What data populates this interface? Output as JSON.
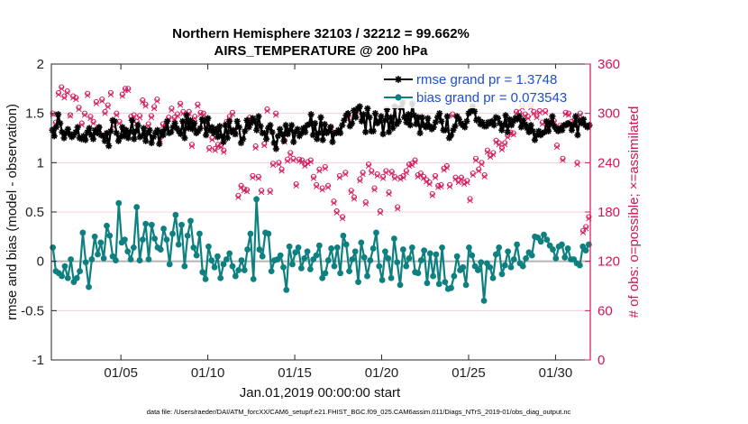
{
  "chart_data": {
    "type": "line",
    "title": "Northern Hemisphere 32103 / 32212 = 99.662%",
    "subtitle": "AIRS_TEMPERATURE @ 200 hPa",
    "xlabel": "Jan.01,2019 00:00:00 start",
    "ylabel": "rmse and bias (model - observation)",
    "ylabel_right": "# of obs: o=possible; ×=assimilated",
    "footnote": "data file: /Users/raeder/DAI/ATM_forcXX/CAM6_setup/f.e21.FHIST_BGC.f09_025.CAM6assim.011/Diags_NTrS_2019-01/obs_diag_output.nc",
    "x_range": [
      1,
      32
    ],
    "ylim": [
      -1,
      2
    ],
    "ylim_right": [
      0,
      360
    ],
    "x_ticks": [
      5,
      10,
      15,
      20,
      25,
      30
    ],
    "x_tick_labels": [
      "01/05",
      "01/10",
      "01/15",
      "01/20",
      "01/25",
      "01/30"
    ],
    "y_ticks": [
      -1,
      -0.5,
      0,
      0.5,
      1,
      1.5,
      2
    ],
    "y_tick_labels": [
      "-1",
      "-0.5",
      "0",
      "0.5",
      "1",
      "1.5",
      "2"
    ],
    "y_right_ticks": [
      0,
      60,
      120,
      180,
      240,
      300,
      360
    ],
    "y_right_tick_labels": [
      "0",
      "60",
      "120",
      "180",
      "240",
      "300",
      "360"
    ],
    "legend": [
      {
        "name": "rmse grand pr = 1.3748",
        "color": "#000000"
      },
      {
        "name": "bias grand pr = 0.073543",
        "color": "#0e8080"
      }
    ],
    "series": [
      {
        "name": "rmse",
        "color": "#000000",
        "marker": "asterisk",
        "values": [
          1.33,
          1.27,
          1.36,
          1.49,
          1.4,
          1.31,
          1.25,
          1.3,
          1.34,
          1.29,
          1.26,
          1.28,
          1.31,
          1.36,
          1.25,
          1.24,
          1.27,
          1.23,
          1.31,
          1.35,
          1.28,
          1.24,
          1.33,
          1.3,
          1.36,
          1.28,
          1.27,
          1.22,
          1.3,
          1.17,
          1.32,
          1.43,
          1.42,
          1.3,
          1.22,
          1.26,
          1.36,
          1.27,
          1.33,
          1.25,
          1.31,
          1.43,
          1.24,
          1.32,
          1.38,
          1.26,
          1.27,
          1.35,
          1.22,
          1.3,
          1.33,
          1.2,
          1.26,
          1.3,
          1.33,
          1.19,
          1.31,
          1.28,
          1.34,
          1.42,
          1.3,
          1.31,
          1.36,
          1.4,
          1.35,
          1.32,
          1.29,
          1.42,
          1.25,
          1.48,
          1.35,
          1.43,
          1.34,
          1.4,
          1.3,
          1.32,
          1.35,
          1.44,
          1.42,
          1.28,
          1.45,
          1.33,
          1.36,
          1.3,
          1.34,
          1.26,
          1.37,
          1.27,
          1.21,
          1.38,
          1.25,
          1.42,
          1.31,
          1.33,
          1.29,
          1.42,
          1.36,
          1.2,
          1.24,
          1.32,
          1.43,
          1.36,
          1.4,
          1.45,
          1.42,
          1.33,
          1.47,
          1.37,
          1.3,
          1.3,
          1.24,
          1.35,
          1.38,
          1.31,
          1.2,
          1.14,
          1.27,
          1.34,
          1.29,
          1.22,
          1.38,
          1.29,
          1.33,
          1.38,
          1.21,
          1.31,
          1.34,
          1.27,
          1.3,
          1.35,
          1.31,
          1.38,
          1.39,
          1.49,
          1.28,
          1.4,
          1.24,
          1.3,
          1.46,
          1.23,
          1.39,
          1.3,
          1.32,
          1.36,
          1.21,
          1.3,
          1.3,
          1.33,
          1.3,
          1.38,
          1.43,
          1.48,
          1.5,
          1.37,
          1.4,
          1.53,
          1.46,
          1.55,
          1.57,
          1.42,
          1.49,
          1.31,
          1.55,
          1.46,
          1.32,
          1.32,
          1.5,
          1.4,
          1.42,
          1.47,
          1.29,
          1.43,
          1.54,
          1.31,
          1.46,
          1.35,
          1.57,
          1.39,
          1.42,
          1.56,
          1.61,
          1.46,
          1.41,
          1.49,
          1.38,
          1.6,
          1.48,
          1.39,
          1.46,
          1.3,
          1.46,
          1.38,
          1.36,
          1.45,
          1.37,
          1.34,
          1.36,
          1.41,
          1.46,
          1.5,
          1.42,
          1.33,
          1.33,
          1.47,
          1.25,
          1.28,
          1.33,
          1.37,
          1.47,
          1.44,
          1.4,
          1.38,
          1.36,
          1.42,
          1.5,
          1.52,
          1.57,
          1.52,
          1.43,
          1.44,
          1.39,
          1.41,
          1.37,
          1.37,
          1.41,
          1.4,
          1.42,
          1.38,
          1.46,
          1.45,
          1.4,
          1.33,
          1.38,
          1.48,
          1.31,
          1.44,
          1.38,
          1.42,
          1.45,
          1.44,
          1.47,
          1.36,
          1.43,
          1.39,
          1.35,
          1.31,
          1.38,
          1.32,
          1.23,
          1.28,
          1.32,
          1.28,
          1.3,
          1.31,
          1.42,
          1.32,
          1.4,
          1.47,
          1.37,
          1.34,
          1.32,
          1.35,
          1.33,
          1.38,
          1.38,
          1.4,
          1.39,
          1.33,
          1.38,
          1.47,
          1.28,
          1.43,
          1.4,
          1.44,
          1.38,
          1.36,
          1.38
        ]
      },
      {
        "name": "bias",
        "color": "#0e8080",
        "marker": "circle",
        "values": [
          0.14,
          -0.1,
          -0.12,
          -0.15,
          -0.05,
          -0.17,
          0.02,
          -0.21,
          -0.17,
          -0.1,
          0.29,
          -0.01,
          -0.26,
          0.02,
          0.25,
          0.07,
          0.19,
          0.03,
          0.36,
          0.26,
          0.05,
          0.01,
          0.59,
          0.19,
          0.22,
          0.1,
          0.02,
          0.14,
          0.55,
          0.01,
          0.22,
          0.38,
          0.02,
          0.37,
          0.23,
          0.14,
          0.12,
          0.33,
          0.22,
          -0.03,
          0.28,
          0.47,
          0.17,
          0.37,
          -0.05,
          0.26,
          0.41,
          0.14,
          0.06,
          0.28,
          -0.11,
          -0.18,
          0.15,
          0.01,
          -0.06,
          0.05,
          -0.17,
          -0.03,
          0.02,
          0.08,
          -0.05,
          -0.15,
          -0.09,
          0.01,
          -0.09,
          0.12,
          0.28,
          -0.18,
          0.63,
          0.12,
          0.05,
          0.29,
          0.28,
          -0.1,
          0.01,
          0.02,
          0.06,
          -0.06,
          -0.29,
          0.15,
          -0.03,
          0.09,
          0.14,
          -0.07,
          0.03,
          0.1,
          -0.08,
          0.02,
          0.06,
          0.16,
          -0.17,
          -0.12,
          0.01,
          0.13,
          -0.05,
          0.14,
          -0.12,
          0.26,
          0.17,
          -0.1,
          0.02,
          0.1,
          -0.21,
          0.19,
          0.04,
          -0.15,
          0.01,
          0.13,
          0.29,
          -0.05,
          -0.19,
          0.1,
          0.03,
          -0.17,
          0.23,
          -0.01,
          -0.24,
          0.12,
          -0.05,
          0.03,
          0.14,
          -0.11,
          -0.12,
          0.01,
          0.11,
          -0.22,
          0.08,
          -0.15,
          0.07,
          -0.23,
          0.14,
          -0.21,
          -0.28,
          -0.27,
          -0.15,
          0.05,
          -0.09,
          -0.06,
          -0.24,
          0.14,
          0.06,
          -0.05,
          -0.09,
          -0.01,
          -0.4,
          -0.02,
          -0.06,
          -0.17,
          0.07,
          0.14,
          -0.13,
          -0.04,
          0.1,
          -0.06,
          0.02,
          0.17,
          -0.02,
          -0.05,
          0.03,
          0.09,
          0.06,
          0.25,
          0.24,
          0.2,
          0.27,
          0.22,
          0.16,
          0.12,
          0.03,
          0.15,
          0.17,
          0.04,
          0.13,
          0.02,
          0.02,
          -0.02,
          -0.04,
          0.15,
          0.11,
          0.17
        ]
      }
    ],
    "obs_possible": [
      300,
      289,
      325,
      332,
      321,
      327,
      298,
      321,
      319,
      307,
      288,
      300,
      324,
      296,
      290,
      314,
      283,
      317,
      302,
      310,
      325,
      286,
      300,
      290,
      323,
      330,
      330,
      296,
      298,
      290,
      297,
      316,
      311,
      287,
      297,
      308,
      317,
      270,
      287,
      286,
      295,
      306,
      295,
      299,
      312,
      302,
      290,
      302,
      262,
      296,
      311,
      301,
      300,
      281,
      258,
      270,
      257,
      262,
      261,
      255,
      290,
      296,
      301,
      276,
      200,
      212,
      208,
      207,
      295,
      224,
      260,
      223,
      206,
      263,
      305,
      206,
      239,
      300,
      240,
      232,
      267,
      244,
      252,
      245,
      214,
      244,
      243,
      238,
      241,
      243,
      223,
      213,
      232,
      209,
      235,
      212,
      284,
      193,
      181,
      224,
      174,
      228,
      297,
      206,
      198,
      304,
      220,
      228,
      192,
      238,
      230,
      209,
      226,
      181,
      223,
      230,
      204,
      229,
      223,
      186,
      222,
      224,
      230,
      238,
      239,
      243,
      225,
      227,
      223,
      219,
      216,
      202,
      224,
      212,
      213,
      233,
      236,
      213,
      299,
      222,
      218,
      222,
      216,
      218,
      196,
      227,
      245,
      232,
      240,
      225,
      255,
      249,
      252,
      267,
      264,
      258,
      264,
      273,
      277,
      276,
      302,
      301,
      309,
      299,
      296,
      309,
      302,
      297,
      303,
      289,
      303,
      284,
      292,
      291,
      261,
      285,
      245,
      301,
      300,
      290,
      292,
      240,
      300,
      157,
      162,
      174
    ],
    "obs_assimilated": [
      299,
      287,
      323,
      330,
      319,
      325,
      297,
      319,
      317,
      305,
      286,
      298,
      322,
      294,
      288,
      312,
      281,
      315,
      300,
      308,
      323,
      284,
      298,
      288,
      321,
      328,
      328,
      294,
      296,
      288,
      295,
      314,
      309,
      285,
      295,
      306,
      315,
      268,
      285,
      284,
      293,
      304,
      293,
      297,
      310,
      300,
      288,
      300,
      260,
      294,
      309,
      299,
      298,
      279,
      256,
      268,
      255,
      260,
      259,
      253,
      288,
      294,
      299,
      274,
      198,
      210,
      206,
      205,
      293,
      222,
      258,
      221,
      204,
      261,
      303,
      204,
      237,
      298,
      238,
      230,
      265,
      242,
      250,
      243,
      212,
      242,
      241,
      236,
      239,
      241,
      221,
      211,
      230,
      207,
      233,
      210,
      282,
      191,
      179,
      222,
      172,
      226,
      295,
      204,
      196,
      302,
      218,
      226,
      190,
      236,
      228,
      207,
      224,
      179,
      221,
      228,
      202,
      227,
      221,
      184,
      220,
      222,
      228,
      236,
      237,
      241,
      223,
      225,
      221,
      217,
      214,
      200,
      222,
      210,
      211,
      231,
      234,
      211,
      297,
      220,
      216,
      220,
      214,
      216,
      194,
      225,
      243,
      230,
      238,
      223,
      253,
      247,
      250,
      265,
      262,
      256,
      262,
      271,
      275,
      274,
      300,
      299,
      307,
      297,
      294,
      307,
      300,
      295,
      301,
      287,
      301,
      282,
      290,
      289,
      259,
      283,
      243,
      299,
      298,
      288,
      290,
      238,
      298,
      155,
      160,
      172
    ]
  }
}
